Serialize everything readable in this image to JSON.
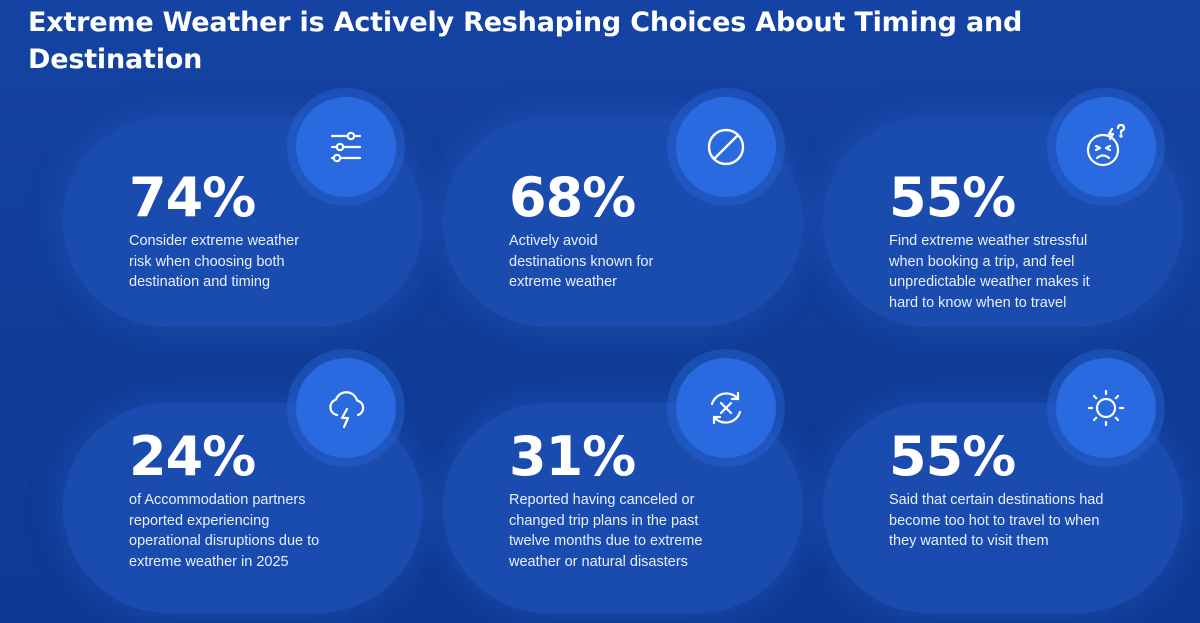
{
  "title": "Extreme Weather is Actively Reshaping Choices About Timing and Destination",
  "stats": [
    {
      "value": "74%",
      "description": "Consider extreme weather risk when choosing both destination and timing",
      "icon": "sliders-icon"
    },
    {
      "value": "68%",
      "description": "Actively avoid destinations known for extreme weather",
      "icon": "prohibited-icon"
    },
    {
      "value": "55%",
      "description": "Find extreme weather stressful when booking a trip, and feel unpredictable weather makes it hard to know when to travel",
      "icon": "stressed-face-icon"
    },
    {
      "value": "24%",
      "description": "of Accommodation partners reported experiencing operational disruptions due to extreme weather in 2025",
      "icon": "storm-cloud-icon"
    },
    {
      "value": "31%",
      "description": "Reported having canceled or changed trip plans in the past twelve months due to extreme weather or natural disasters",
      "icon": "cancel-refresh-icon"
    },
    {
      "value": "55%",
      "description": "Said that certain destinations had become too hot to travel to when they wanted to visit them",
      "icon": "sun-icon"
    }
  ],
  "colors": {
    "background": "#123f99",
    "card": "#1a4cb0",
    "icon_circle": "#2a6ae0",
    "text": "#ffffff"
  }
}
